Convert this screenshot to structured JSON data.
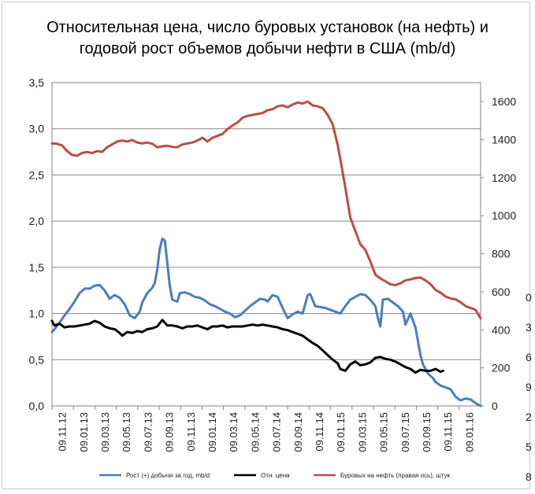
{
  "title_line1": "Относительная цена, число буровых установок (на нефть) и",
  "title_line2": "годовой рост объемов добычи нефти в США (mb/d)",
  "colors": {
    "growth": "#4a7ebb",
    "price": "#000000",
    "rigs": "#be4b48",
    "grid": "#868686",
    "frame": "#c8c8c8"
  },
  "clipped_right_labels": [
    "0",
    "3",
    "6",
    "9",
    "2",
    "5",
    "8"
  ],
  "chart_data": {
    "type": "line",
    "title": "Относительная цена, число буровых установок (на нефть) и годовой рост объемов добычи нефти в США (mb/d)",
    "x_start": "2012-11-09",
    "x_end": "2016-02-19",
    "x_ticks": [
      "09.11.12",
      "09.01.13",
      "09.03.13",
      "09.05.13",
      "09.07.13",
      "09.09.13",
      "09.11.13",
      "09.01.14",
      "09.03.14",
      "09.05.14",
      "09.07.14",
      "09.09.14",
      "09.11.14",
      "09.01.15",
      "09.03.15",
      "09.05.15",
      "09.07.15",
      "09.09.15",
      "09.11.15",
      "09.01.16"
    ],
    "y_left": {
      "range": [
        0,
        3.5
      ],
      "ticks": [
        "0,0",
        "0,5",
        "1,0",
        "1,5",
        "2,0",
        "2,5",
        "3,0",
        "3,5"
      ]
    },
    "y_right": {
      "range": [
        0,
        1700
      ],
      "ticks": [
        "0",
        "200",
        "400",
        "600",
        "800",
        "1000",
        "1200",
        "1400",
        "1600"
      ]
    },
    "grid": "horizontal",
    "legend_position": "bottom",
    "series": [
      {
        "name": "Рост (+) добычи за год, mb/d",
        "axis": "left",
        "color": "#4a7ebb",
        "points": [
          [
            "2012-11-09",
            0.8
          ],
          [
            "2012-11-16",
            0.83
          ],
          [
            "2012-11-30",
            0.9
          ],
          [
            "2012-12-14",
            0.98
          ],
          [
            "2012-12-28",
            1.05
          ],
          [
            "2013-01-11",
            1.13
          ],
          [
            "2013-01-25",
            1.22
          ],
          [
            "2013-02-08",
            1.27
          ],
          [
            "2013-02-22",
            1.27
          ],
          [
            "2013-03-08",
            1.3
          ],
          [
            "2013-03-22",
            1.31
          ],
          [
            "2013-04-05",
            1.25
          ],
          [
            "2013-04-19",
            1.16
          ],
          [
            "2013-05-03",
            1.2
          ],
          [
            "2013-05-17",
            1.17
          ],
          [
            "2013-05-31",
            1.1
          ],
          [
            "2013-06-14",
            0.98
          ],
          [
            "2013-06-28",
            0.95
          ],
          [
            "2013-07-12",
            1.02
          ],
          [
            "2013-07-19",
            1.12
          ],
          [
            "2013-08-02",
            1.22
          ],
          [
            "2013-08-16",
            1.28
          ],
          [
            "2013-08-23",
            1.33
          ],
          [
            "2013-08-30",
            1.48
          ],
          [
            "2013-09-06",
            1.7
          ],
          [
            "2013-09-13",
            1.81
          ],
          [
            "2013-09-20",
            1.79
          ],
          [
            "2013-09-27",
            1.55
          ],
          [
            "2013-10-04",
            1.3
          ],
          [
            "2013-10-11",
            1.15
          ],
          [
            "2013-10-25",
            1.13
          ],
          [
            "2013-11-01",
            1.22
          ],
          [
            "2013-11-15",
            1.23
          ],
          [
            "2013-11-29",
            1.21
          ],
          [
            "2013-12-13",
            1.18
          ],
          [
            "2013-12-27",
            1.17
          ],
          [
            "2014-01-10",
            1.14
          ],
          [
            "2014-01-24",
            1.1
          ],
          [
            "2014-02-07",
            1.08
          ],
          [
            "2014-02-21",
            1.05
          ],
          [
            "2014-03-07",
            1.02
          ],
          [
            "2014-03-21",
            1.0
          ],
          [
            "2014-04-04",
            0.96
          ],
          [
            "2014-04-18",
            0.98
          ],
          [
            "2014-05-02",
            1.03
          ],
          [
            "2014-05-16",
            1.08
          ],
          [
            "2014-05-30",
            1.12
          ],
          [
            "2014-06-13",
            1.16
          ],
          [
            "2014-06-27",
            1.15
          ],
          [
            "2014-07-04",
            1.13
          ],
          [
            "2014-07-18",
            1.2
          ],
          [
            "2014-08-01",
            1.18
          ],
          [
            "2014-08-15",
            1.06
          ],
          [
            "2014-08-29",
            0.95
          ],
          [
            "2014-09-12",
            0.99
          ],
          [
            "2014-09-26",
            1.02
          ],
          [
            "2014-10-10",
            1.0
          ],
          [
            "2014-10-24",
            1.2
          ],
          [
            "2014-10-31",
            1.21
          ],
          [
            "2014-11-14",
            1.08
          ],
          [
            "2014-11-28",
            1.07
          ],
          [
            "2014-12-12",
            1.06
          ],
          [
            "2014-12-26",
            1.04
          ],
          [
            "2015-01-09",
            1.02
          ],
          [
            "2015-01-23",
            1.0
          ],
          [
            "2015-02-06",
            1.08
          ],
          [
            "2015-02-20",
            1.15
          ],
          [
            "2015-03-06",
            1.18
          ],
          [
            "2015-03-20",
            1.21
          ],
          [
            "2015-04-03",
            1.2
          ],
          [
            "2015-04-17",
            1.15
          ],
          [
            "2015-05-01",
            1.08
          ],
          [
            "2015-05-08",
            0.95
          ],
          [
            "2015-05-15",
            0.86
          ],
          [
            "2015-05-22",
            1.15
          ],
          [
            "2015-06-05",
            1.16
          ],
          [
            "2015-06-19",
            1.12
          ],
          [
            "2015-07-03",
            1.08
          ],
          [
            "2015-07-17",
            1.02
          ],
          [
            "2015-07-24",
            0.88
          ],
          [
            "2015-08-07",
            1.0
          ],
          [
            "2015-08-21",
            0.85
          ],
          [
            "2015-09-04",
            0.55
          ],
          [
            "2015-09-11",
            0.45
          ],
          [
            "2015-09-25",
            0.35
          ],
          [
            "2015-10-09",
            0.3
          ],
          [
            "2015-10-16",
            0.26
          ],
          [
            "2015-10-30",
            0.22
          ],
          [
            "2015-11-13",
            0.2
          ],
          [
            "2015-11-27",
            0.18
          ],
          [
            "2015-12-11",
            0.1
          ],
          [
            "2015-12-25",
            0.06
          ],
          [
            "2016-01-08",
            0.08
          ],
          [
            "2016-01-22",
            0.07
          ],
          [
            "2016-02-05",
            0.03
          ],
          [
            "2016-02-19",
            0.0
          ]
        ]
      },
      {
        "name": "Отн. цена",
        "axis": "left",
        "color": "#000000",
        "points": [
          [
            "2012-11-09",
            0.92
          ],
          [
            "2012-11-16",
            0.87
          ],
          [
            "2012-11-30",
            0.89
          ],
          [
            "2012-12-14",
            0.85
          ],
          [
            "2012-12-28",
            0.86
          ],
          [
            "2013-01-11",
            0.86
          ],
          [
            "2013-01-25",
            0.87
          ],
          [
            "2013-02-08",
            0.88
          ],
          [
            "2013-02-22",
            0.89
          ],
          [
            "2013-03-08",
            0.92
          ],
          [
            "2013-03-22",
            0.9
          ],
          [
            "2013-04-05",
            0.86
          ],
          [
            "2013-04-19",
            0.84
          ],
          [
            "2013-05-03",
            0.83
          ],
          [
            "2013-05-17",
            0.79
          ],
          [
            "2013-05-24",
            0.76
          ],
          [
            "2013-06-07",
            0.8
          ],
          [
            "2013-06-21",
            0.79
          ],
          [
            "2013-07-05",
            0.81
          ],
          [
            "2013-07-19",
            0.8
          ],
          [
            "2013-08-02",
            0.83
          ],
          [
            "2013-08-16",
            0.84
          ],
          [
            "2013-08-30",
            0.86
          ],
          [
            "2013-09-13",
            0.93
          ],
          [
            "2013-09-27",
            0.87
          ],
          [
            "2013-10-11",
            0.87
          ],
          [
            "2013-10-25",
            0.86
          ],
          [
            "2013-11-08",
            0.84
          ],
          [
            "2013-11-22",
            0.86
          ],
          [
            "2013-12-06",
            0.86
          ],
          [
            "2013-12-20",
            0.87
          ],
          [
            "2014-01-03",
            0.85
          ],
          [
            "2014-01-17",
            0.83
          ],
          [
            "2014-01-31",
            0.86
          ],
          [
            "2014-02-14",
            0.86
          ],
          [
            "2014-02-28",
            0.87
          ],
          [
            "2014-03-14",
            0.85
          ],
          [
            "2014-03-28",
            0.86
          ],
          [
            "2014-04-11",
            0.86
          ],
          [
            "2014-04-25",
            0.86
          ],
          [
            "2014-05-09",
            0.87
          ],
          [
            "2014-05-23",
            0.88
          ],
          [
            "2014-06-06",
            0.87
          ],
          [
            "2014-06-20",
            0.88
          ],
          [
            "2014-07-04",
            0.87
          ],
          [
            "2014-07-18",
            0.86
          ],
          [
            "2014-08-01",
            0.85
          ],
          [
            "2014-08-15",
            0.83
          ],
          [
            "2014-08-29",
            0.82
          ],
          [
            "2014-09-12",
            0.8
          ],
          [
            "2014-09-26",
            0.78
          ],
          [
            "2014-10-10",
            0.76
          ],
          [
            "2014-10-24",
            0.72
          ],
          [
            "2014-11-07",
            0.68
          ],
          [
            "2014-11-21",
            0.65
          ],
          [
            "2014-12-05",
            0.6
          ],
          [
            "2014-12-19",
            0.55
          ],
          [
            "2015-01-02",
            0.5
          ],
          [
            "2015-01-16",
            0.46
          ],
          [
            "2015-01-23",
            0.4
          ],
          [
            "2015-02-06",
            0.38
          ],
          [
            "2015-02-20",
            0.45
          ],
          [
            "2015-03-06",
            0.48
          ],
          [
            "2015-03-20",
            0.44
          ],
          [
            "2015-04-03",
            0.45
          ],
          [
            "2015-04-17",
            0.47
          ],
          [
            "2015-05-01",
            0.52
          ],
          [
            "2015-05-15",
            0.53
          ],
          [
            "2015-05-29",
            0.51
          ],
          [
            "2015-06-12",
            0.5
          ],
          [
            "2015-06-26",
            0.48
          ],
          [
            "2015-07-10",
            0.45
          ],
          [
            "2015-07-24",
            0.42
          ],
          [
            "2015-08-07",
            0.4
          ],
          [
            "2015-08-21",
            0.36
          ],
          [
            "2015-09-04",
            0.39
          ],
          [
            "2015-09-18",
            0.38
          ],
          [
            "2015-10-02",
            0.38
          ],
          [
            "2015-10-16",
            0.4
          ],
          [
            "2015-10-30",
            0.37
          ],
          [
            "2015-11-06",
            0.38
          ]
        ]
      },
      {
        "name": "Буровых на нефть (правая ось), штук",
        "axis": "right",
        "color": "#be4b48",
        "points": [
          [
            "2012-11-09",
            1380
          ],
          [
            "2012-11-23",
            1378
          ],
          [
            "2012-12-07",
            1370
          ],
          [
            "2012-12-21",
            1340
          ],
          [
            "2013-01-04",
            1320
          ],
          [
            "2013-01-18",
            1315
          ],
          [
            "2013-02-01",
            1330
          ],
          [
            "2013-02-15",
            1335
          ],
          [
            "2013-03-01",
            1330
          ],
          [
            "2013-03-15",
            1340
          ],
          [
            "2013-03-29",
            1335
          ],
          [
            "2013-04-12",
            1360
          ],
          [
            "2013-04-26",
            1375
          ],
          [
            "2013-05-10",
            1390
          ],
          [
            "2013-05-24",
            1395
          ],
          [
            "2013-06-07",
            1390
          ],
          [
            "2013-06-21",
            1398
          ],
          [
            "2013-07-05",
            1385
          ],
          [
            "2013-07-19",
            1380
          ],
          [
            "2013-08-02",
            1385
          ],
          [
            "2013-08-16",
            1378
          ],
          [
            "2013-08-30",
            1360
          ],
          [
            "2013-09-13",
            1365
          ],
          [
            "2013-09-27",
            1368
          ],
          [
            "2013-10-11",
            1362
          ],
          [
            "2013-10-25",
            1360
          ],
          [
            "2013-11-08",
            1375
          ],
          [
            "2013-11-22",
            1380
          ],
          [
            "2013-12-06",
            1385
          ],
          [
            "2013-12-20",
            1395
          ],
          [
            "2014-01-03",
            1410
          ],
          [
            "2014-01-17",
            1390
          ],
          [
            "2014-01-31",
            1410
          ],
          [
            "2014-02-14",
            1420
          ],
          [
            "2014-02-28",
            1430
          ],
          [
            "2014-03-14",
            1455
          ],
          [
            "2014-03-28",
            1475
          ],
          [
            "2014-04-11",
            1490
          ],
          [
            "2014-04-25",
            1515
          ],
          [
            "2014-05-09",
            1525
          ],
          [
            "2014-05-23",
            1530
          ],
          [
            "2014-06-06",
            1535
          ],
          [
            "2014-06-20",
            1540
          ],
          [
            "2014-07-04",
            1555
          ],
          [
            "2014-07-18",
            1560
          ],
          [
            "2014-08-01",
            1575
          ],
          [
            "2014-08-15",
            1580
          ],
          [
            "2014-08-29",
            1570
          ],
          [
            "2014-09-12",
            1585
          ],
          [
            "2014-09-26",
            1595
          ],
          [
            "2014-10-10",
            1590
          ],
          [
            "2014-10-24",
            1600
          ],
          [
            "2014-11-07",
            1580
          ],
          [
            "2014-11-21",
            1575
          ],
          [
            "2014-12-05",
            1565
          ],
          [
            "2014-12-19",
            1530
          ],
          [
            "2015-01-02",
            1480
          ],
          [
            "2015-01-16",
            1370
          ],
          [
            "2015-01-23",
            1300
          ],
          [
            "2015-02-06",
            1150
          ],
          [
            "2015-02-20",
            990
          ],
          [
            "2015-03-06",
            920
          ],
          [
            "2015-03-20",
            850
          ],
          [
            "2015-04-03",
            820
          ],
          [
            "2015-04-17",
            760
          ],
          [
            "2015-05-01",
            690
          ],
          [
            "2015-05-15",
            670
          ],
          [
            "2015-05-29",
            655
          ],
          [
            "2015-06-12",
            640
          ],
          [
            "2015-06-26",
            635
          ],
          [
            "2015-07-10",
            645
          ],
          [
            "2015-07-24",
            660
          ],
          [
            "2015-08-07",
            665
          ],
          [
            "2015-08-21",
            672
          ],
          [
            "2015-09-04",
            675
          ],
          [
            "2015-09-18",
            660
          ],
          [
            "2015-10-02",
            640
          ],
          [
            "2015-10-16",
            610
          ],
          [
            "2015-10-30",
            595
          ],
          [
            "2015-11-13",
            575
          ],
          [
            "2015-11-27",
            565
          ],
          [
            "2015-12-11",
            560
          ],
          [
            "2015-12-25",
            545
          ],
          [
            "2016-01-08",
            525
          ],
          [
            "2016-01-22",
            515
          ],
          [
            "2016-02-05",
            505
          ],
          [
            "2016-02-19",
            460
          ]
        ]
      }
    ]
  }
}
